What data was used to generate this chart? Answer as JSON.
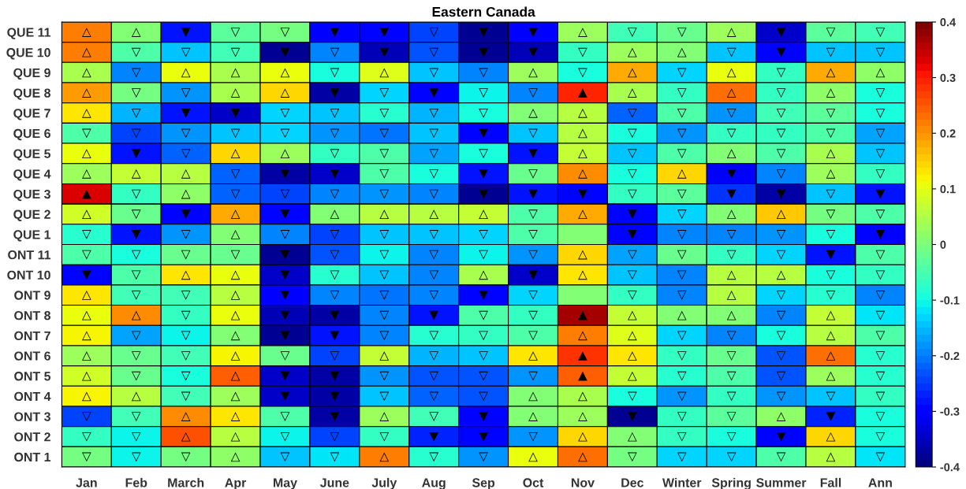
{
  "chart_data": {
    "type": "heatmap",
    "title": "Eastern Canada",
    "categories": [
      "Jan",
      "Feb",
      "March",
      "Apr",
      "May",
      "June",
      "July",
      "Aug",
      "Sep",
      "Oct",
      "Nov",
      "Dec",
      "Winter",
      "Spring",
      "Summer",
      "Fall",
      "Ann"
    ],
    "y_categories": [
      "QUE 11",
      "QUE 10",
      "QUE 9",
      "QUE 8",
      "QUE 7",
      "QUE 6",
      "QUE 5",
      "QUE 4",
      "QUE 3",
      "QUE 2",
      "QUE 1",
      "ONT 11",
      "ONT 10",
      "ONT 9",
      "ONT 8",
      "ONT 7",
      "ONT 6",
      "ONT 5",
      "ONT 4",
      "ONT 3",
      "ONT 2",
      "ONT 1"
    ],
    "cells": [
      [
        0.22,
        0.01,
        -0.28,
        -0.03,
        -0.01,
        -0.31,
        -0.29,
        -0.24,
        -0.38,
        -0.31,
        0.03,
        -0.06,
        -0.02,
        0.03,
        -0.35,
        -0.03,
        -0.06
      ],
      [
        0.22,
        -0.05,
        -0.14,
        -0.06,
        -0.38,
        -0.19,
        -0.36,
        -0.23,
        -0.38,
        -0.36,
        -0.07,
        0.03,
        0.01,
        -0.14,
        -0.3,
        -0.15,
        -0.14
      ],
      [
        0.04,
        -0.2,
        0.1,
        0.04,
        0.1,
        -0.1,
        0.09,
        -0.15,
        -0.19,
        0.03,
        -0.1,
        0.18,
        -0.13,
        0.1,
        -0.07,
        0.18,
        0.02
      ],
      [
        0.19,
        -0.01,
        -0.18,
        0.04,
        0.14,
        -0.37,
        -0.13,
        -0.29,
        -0.11,
        -0.19,
        0.3,
        0.04,
        -0.07,
        0.23,
        -0.07,
        0.02,
        -0.09
      ],
      [
        0.13,
        -0.16,
        -0.28,
        -0.34,
        -0.13,
        -0.15,
        -0.08,
        -0.16,
        -0.1,
        0.01,
        0.06,
        -0.22,
        -0.04,
        -0.18,
        -0.06,
        -0.03,
        -0.1
      ],
      [
        -0.04,
        -0.24,
        -0.18,
        -0.14,
        -0.13,
        -0.18,
        -0.21,
        -0.14,
        -0.3,
        -0.14,
        0.05,
        -0.1,
        -0.18,
        -0.07,
        -0.07,
        -0.04,
        -0.17
      ],
      [
        0.11,
        -0.28,
        -0.22,
        0.14,
        0.03,
        -0.07,
        -0.05,
        -0.17,
        -0.09,
        -0.28,
        0.07,
        -0.14,
        -0.04,
        0.0,
        -0.04,
        0.04,
        -0.14
      ],
      [
        0.03,
        0.07,
        0.06,
        -0.22,
        -0.37,
        -0.34,
        -0.05,
        -0.09,
        -0.28,
        -0.02,
        0.21,
        -0.1,
        0.14,
        -0.31,
        -0.2,
        0.03,
        -0.07
      ],
      [
        0.33,
        -0.07,
        0.02,
        -0.22,
        -0.24,
        -0.2,
        -0.18,
        -0.19,
        -0.38,
        -0.28,
        -0.3,
        -0.07,
        -0.03,
        -0.26,
        -0.37,
        -0.14,
        -0.28
      ],
      [
        0.08,
        -0.02,
        -0.29,
        0.18,
        -0.3,
        0.01,
        0.05,
        0.06,
        0.07,
        -0.04,
        0.18,
        -0.3,
        -0.13,
        0.01,
        0.15,
        -0.01,
        -0.04
      ],
      [
        -0.08,
        -0.28,
        -0.18,
        0.01,
        -0.19,
        -0.24,
        -0.14,
        -0.14,
        -0.13,
        -0.04,
        0.0,
        -0.29,
        -0.19,
        -0.2,
        -0.18,
        -0.1,
        -0.29
      ],
      [
        -0.04,
        -0.1,
        -0.02,
        -0.02,
        -0.38,
        -0.23,
        -0.11,
        -0.2,
        -0.11,
        -0.18,
        0.14,
        -0.17,
        -0.02,
        -0.07,
        -0.13,
        -0.28,
        -0.04
      ],
      [
        -0.29,
        -0.05,
        0.13,
        0.1,
        -0.35,
        -0.08,
        -0.14,
        -0.19,
        0.04,
        -0.35,
        0.13,
        -0.14,
        -0.19,
        0.06,
        0.06,
        -0.1,
        -0.07
      ],
      [
        0.13,
        -0.06,
        -0.06,
        0.05,
        -0.31,
        -0.19,
        -0.21,
        -0.2,
        -0.3,
        -0.13,
        0.0,
        -0.07,
        -0.2,
        0.06,
        -0.13,
        -0.08,
        -0.19
      ],
      [
        0.11,
        0.21,
        -0.07,
        0.1,
        -0.36,
        -0.37,
        -0.19,
        -0.28,
        -0.04,
        -0.07,
        0.37,
        0.07,
        0.01,
        0.01,
        -0.19,
        0.07,
        -0.12
      ],
      [
        0.12,
        -0.17,
        -0.11,
        0.01,
        -0.38,
        -0.28,
        -0.2,
        -0.08,
        -0.07,
        -0.05,
        0.22,
        0.09,
        -0.13,
        -0.19,
        -0.1,
        0.06,
        -0.05
      ],
      [
        0.03,
        -0.02,
        -0.06,
        0.12,
        -0.02,
        -0.24,
        0.07,
        -0.16,
        -0.15,
        0.13,
        0.28,
        0.13,
        -0.07,
        -0.02,
        -0.23,
        0.23,
        -0.08
      ],
      [
        0.08,
        -0.02,
        -0.09,
        0.24,
        -0.35,
        -0.37,
        -0.18,
        -0.23,
        -0.23,
        -0.18,
        0.24,
        0.07,
        -0.08,
        -0.05,
        -0.23,
        0.03,
        -0.08
      ],
      [
        0.12,
        0.06,
        -0.06,
        0.03,
        -0.35,
        -0.37,
        -0.14,
        -0.22,
        -0.23,
        0.01,
        0.04,
        -0.1,
        -0.18,
        -0.07,
        -0.18,
        -0.14,
        -0.07
      ],
      [
        -0.25,
        -0.06,
        0.2,
        0.13,
        -0.05,
        -0.37,
        0.03,
        -0.06,
        -0.3,
        0.0,
        0.03,
        -0.38,
        -0.07,
        -0.03,
        0.02,
        -0.27,
        -0.1
      ],
      [
        -0.07,
        -0.11,
        0.26,
        0.06,
        -0.11,
        -0.24,
        -0.07,
        -0.27,
        -0.3,
        -0.18,
        0.14,
        0.0,
        -0.07,
        -0.09,
        -0.3,
        0.14,
        -0.1
      ],
      [
        -0.01,
        -0.11,
        -0.01,
        0.02,
        -0.14,
        -0.12,
        0.22,
        -0.08,
        -0.18,
        0.1,
        0.23,
        -0.01,
        -0.13,
        -0.13,
        -0.04,
        0.05,
        -0.12
      ]
    ],
    "cell_labels": [
      [
        "△",
        "△",
        "▼",
        "▽",
        "▽",
        "▼",
        "▼",
        "▽",
        "▼",
        "▼",
        "△",
        "▽",
        "▽",
        "△",
        "▼",
        "▽",
        "▽"
      ],
      [
        "△",
        "▽",
        "▽",
        "▽",
        "▼",
        "▽",
        "▼",
        "▽",
        "▼",
        "▼",
        "▽",
        "△",
        "△",
        "▽",
        "▼",
        "▽",
        "▽"
      ],
      [
        "△",
        "▽",
        "△",
        "△",
        "△",
        "▽",
        "△",
        "▽",
        "▽",
        "△",
        "▽",
        "△",
        "▽",
        "△",
        "▽",
        "△",
        "△"
      ],
      [
        "△",
        "▽",
        "▽",
        "△",
        "△",
        "▼",
        "▽",
        "▼",
        "▽",
        "▽",
        "▲",
        "△",
        "▽",
        "△",
        "▽",
        "△",
        "▽"
      ],
      [
        "△",
        "▽",
        "▼",
        "▼",
        "▽",
        "▽",
        "▽",
        "▽",
        "▽",
        "△",
        "△",
        "▽",
        "▽",
        "▽",
        "▽",
        "▽",
        "▽"
      ],
      [
        "▽",
        "▽",
        "▽",
        "▽",
        "▽",
        "▽",
        "▽",
        "▽",
        "▼",
        "▽",
        "△",
        "▽",
        "▽",
        "▽",
        "▽",
        "▽",
        "▽"
      ],
      [
        "△",
        "▼",
        "▽",
        "△",
        "△",
        "▽",
        "▽",
        "▽",
        "▽",
        "▼",
        "△",
        "▽",
        "▽",
        "△",
        "▽",
        "△",
        "▽"
      ],
      [
        "△",
        "△",
        "△",
        "▽",
        "▼",
        "▼",
        "▽",
        "▽",
        "▼",
        "▽",
        "△",
        "▽",
        "△",
        "▼",
        "▽",
        "△",
        "▽"
      ],
      [
        "▲",
        "▽",
        "△",
        "▽",
        "▽",
        "▽",
        "▽",
        "▽",
        "▼",
        "▼",
        "▼",
        "▽",
        "▽",
        "▼",
        "▼",
        "▽",
        "▼"
      ],
      [
        "△",
        "▽",
        "▼",
        "△",
        "▼",
        "△",
        "△",
        "△",
        "△",
        "▽",
        "△",
        "▼",
        "▽",
        "△",
        "△",
        "▽",
        "▽"
      ],
      [
        "▽",
        "▼",
        "▽",
        "△",
        "▽",
        "▽",
        "▽",
        "▽",
        "▽",
        "▽",
        null,
        "▼",
        "▽",
        "▽",
        "▽",
        "▽",
        "▼"
      ],
      [
        "▽",
        "▽",
        "▽",
        "▽",
        "▼",
        "▽",
        "▽",
        "▽",
        "▽",
        "▽",
        "△",
        "▽",
        "▽",
        "▽",
        "▽",
        "▼",
        "▽"
      ],
      [
        "▼",
        "▽",
        "△",
        "△",
        "▼",
        "▽",
        "▽",
        "▽",
        "△",
        "▼",
        "△",
        "▽",
        "▽",
        "△",
        "△",
        "▽",
        "▽"
      ],
      [
        "△",
        "▽",
        "▽",
        "△",
        "▼",
        "▽",
        "▽",
        "▽",
        "▼",
        "▽",
        null,
        "▽",
        "▽",
        "△",
        "▽",
        "▽",
        "▽"
      ],
      [
        "△",
        "△",
        "▽",
        "△",
        "▼",
        "▼",
        "▽",
        "▼",
        "▽",
        "▽",
        "▲",
        "△",
        "△",
        "△",
        "▽",
        "△",
        "▽"
      ],
      [
        "△",
        "▽",
        "▽",
        "△",
        "▼",
        "▼",
        "▽",
        "▽",
        "▽",
        "▽",
        "△",
        "△",
        "▽",
        "▽",
        "▽",
        "△",
        "▽"
      ],
      [
        "△",
        "▽",
        "▽",
        "△",
        "▽",
        "▽",
        "△",
        "▽",
        "▽",
        "△",
        "▲",
        "△",
        "▽",
        "▽",
        "▽",
        "△",
        "▽"
      ],
      [
        "△",
        "▽",
        "▽",
        "△",
        "▼",
        "▼",
        "▽",
        "▽",
        "▽",
        "▽",
        "▲",
        "△",
        "▽",
        "▽",
        "▽",
        "△",
        "▽"
      ],
      [
        "△",
        "△",
        "▽",
        "△",
        "▼",
        "▼",
        "▽",
        "▽",
        "▽",
        "△",
        "△",
        "▽",
        "▽",
        "▽",
        "▽",
        "▽",
        "▽"
      ],
      [
        "▽",
        "▽",
        "△",
        "△",
        "▽",
        "▼",
        "△",
        "▽",
        "▼",
        "△",
        "△",
        "▼",
        "▽",
        "▽",
        "△",
        "▼",
        "▽"
      ],
      [
        "▽",
        "▽",
        "△",
        "△",
        "▽",
        "▽",
        "▽",
        "▼",
        "▼",
        "▽",
        "△",
        "△",
        "▽",
        "▽",
        "▼",
        "△",
        "▽"
      ],
      [
        "▽",
        "▽",
        "▽",
        "△",
        "▽",
        "▽",
        "△",
        "▽",
        "▽",
        "△",
        "△",
        "▽",
        "▽",
        "▽",
        "▽",
        "△",
        "▽"
      ]
    ],
    "clim": [
      -0.4,
      0.4
    ],
    "cticks": [
      -0.4,
      -0.3,
      -0.2,
      -0.1,
      0,
      0.1,
      0.2,
      0.3,
      0.4
    ]
  }
}
